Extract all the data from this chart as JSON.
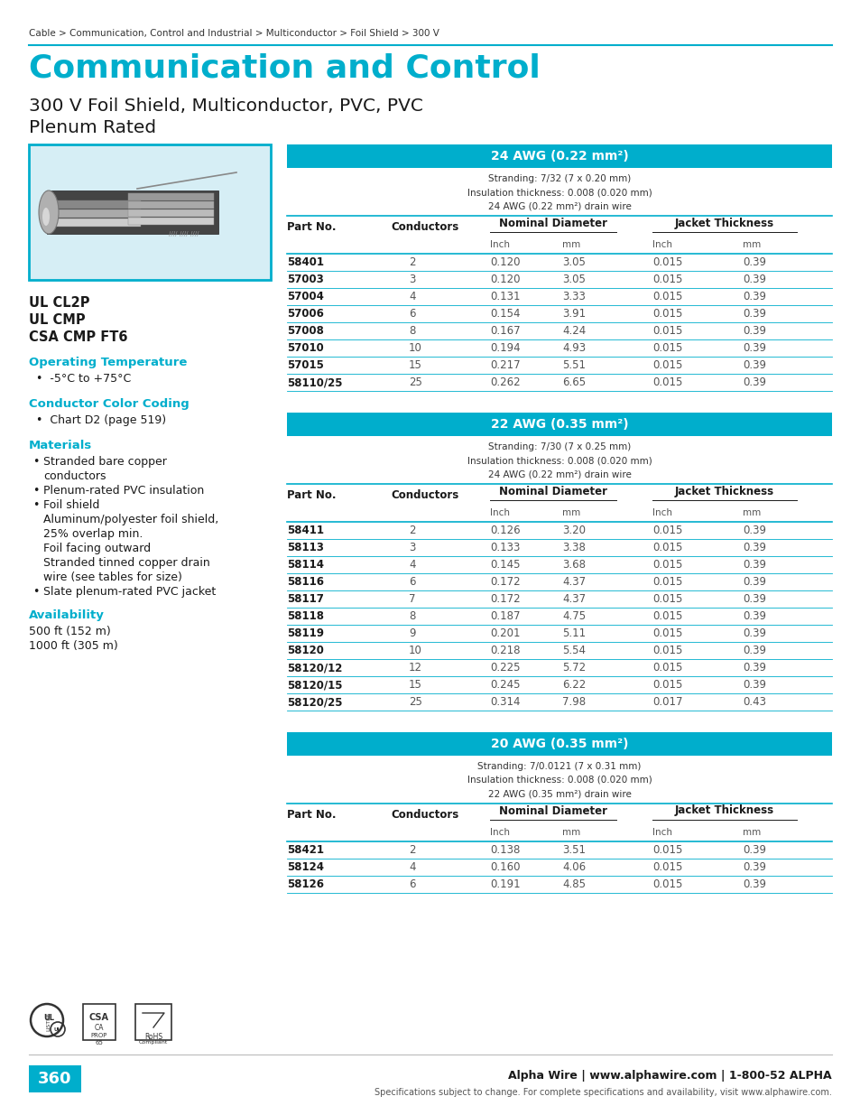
{
  "breadcrumb": "Cable > Communication, Control and Industrial > Multiconductor > Foil Shield > 300 V",
  "main_title": "Communication and Control",
  "subtitle1": "300 V Foil Shield, Multiconductor, PVC, PVC",
  "subtitle2": "Plenum Rated",
  "certifications": [
    "UL CL2P",
    "UL CMP",
    "CSA CMP FT6"
  ],
  "op_temp_label": "Operating Temperature",
  "op_temp_value": "-5°C to +75°C",
  "color_coding_label": "Conductor Color Coding",
  "color_coding_value": "Chart D2 (page 519)",
  "materials_label": "Materials",
  "availability_label": "Availability",
  "availability_lines": [
    "500 ft (152 m)",
    "1000 ft (305 m)"
  ],
  "teal_color": "#00AECC",
  "light_blue_bg": "#D6EEF5",
  "table1_title": "24 AWG (0.22 mm²)",
  "table1_stranding": [
    "Stranding: 7/32 (7 x 0.20 mm)",
    "Insulation thickness: 0.008 (0.020 mm)",
    "24 AWG (0.22 mm²) drain wire"
  ],
  "table1_data": [
    [
      "58401",
      "2",
      "0.120",
      "3.05",
      "0.015",
      "0.39"
    ],
    [
      "57003",
      "3",
      "0.120",
      "3.05",
      "0.015",
      "0.39"
    ],
    [
      "57004",
      "4",
      "0.131",
      "3.33",
      "0.015",
      "0.39"
    ],
    [
      "57006",
      "6",
      "0.154",
      "3.91",
      "0.015",
      "0.39"
    ],
    [
      "57008",
      "8",
      "0.167",
      "4.24",
      "0.015",
      "0.39"
    ],
    [
      "57010",
      "10",
      "0.194",
      "4.93",
      "0.015",
      "0.39"
    ],
    [
      "57015",
      "15",
      "0.217",
      "5.51",
      "0.015",
      "0.39"
    ],
    [
      "58110/25",
      "25",
      "0.262",
      "6.65",
      "0.015",
      "0.39"
    ]
  ],
  "table2_title": "22 AWG (0.35 mm²)",
  "table2_stranding": [
    "Stranding: 7/30 (7 x 0.25 mm)",
    "Insulation thickness: 0.008 (0.020 mm)",
    "24 AWG (0.22 mm²) drain wire"
  ],
  "table2_data": [
    [
      "58411",
      "2",
      "0.126",
      "3.20",
      "0.015",
      "0.39"
    ],
    [
      "58113",
      "3",
      "0.133",
      "3.38",
      "0.015",
      "0.39"
    ],
    [
      "58114",
      "4",
      "0.145",
      "3.68",
      "0.015",
      "0.39"
    ],
    [
      "58116",
      "6",
      "0.172",
      "4.37",
      "0.015",
      "0.39"
    ],
    [
      "58117",
      "7",
      "0.172",
      "4.37",
      "0.015",
      "0.39"
    ],
    [
      "58118",
      "8",
      "0.187",
      "4.75",
      "0.015",
      "0.39"
    ],
    [
      "58119",
      "9",
      "0.201",
      "5.11",
      "0.015",
      "0.39"
    ],
    [
      "58120",
      "10",
      "0.218",
      "5.54",
      "0.015",
      "0.39"
    ],
    [
      "58120/12",
      "12",
      "0.225",
      "5.72",
      "0.015",
      "0.39"
    ],
    [
      "58120/15",
      "15",
      "0.245",
      "6.22",
      "0.015",
      "0.39"
    ],
    [
      "58120/25",
      "25",
      "0.314",
      "7.98",
      "0.017",
      "0.43"
    ]
  ],
  "table3_title": "20 AWG (0.35 mm²)",
  "table3_stranding": [
    "Stranding: 7/0.0121 (7 x 0.31 mm)",
    "Insulation thickness: 0.008 (0.020 mm)",
    "22 AWG (0.35 mm²) drain wire"
  ],
  "table3_data": [
    [
      "58421",
      "2",
      "0.138",
      "3.51",
      "0.015",
      "0.39"
    ],
    [
      "58124",
      "4",
      "0.160",
      "4.06",
      "0.015",
      "0.39"
    ],
    [
      "58126",
      "6",
      "0.191",
      "4.85",
      "0.015",
      "0.39"
    ]
  ],
  "footer_page": "360",
  "footer_center": "Alpha Wire | www.alphawire.com | 1-800-52 ALPHA",
  "footer_small": "Specifications subject to change. For complete specifications and availability, visit www.alphawire.com."
}
